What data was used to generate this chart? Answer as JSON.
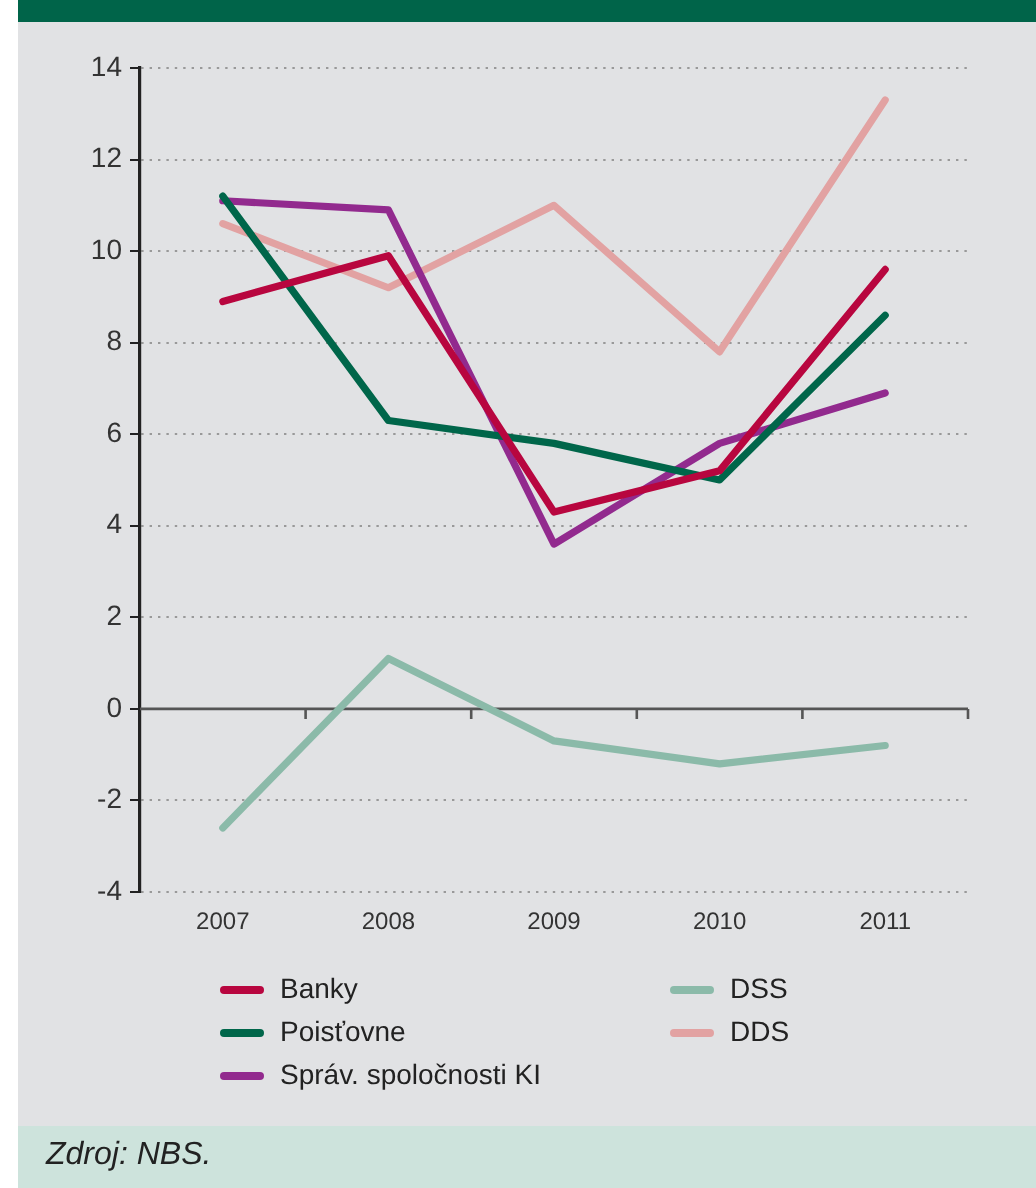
{
  "chart_data": {
    "type": "line",
    "categories": [
      "2007",
      "2008",
      "2009",
      "2010",
      "2011"
    ],
    "series": [
      {
        "name": "Banky",
        "color": "#b8063f",
        "values": [
          8.9,
          9.9,
          4.3,
          5.2,
          9.6
        ]
      },
      {
        "name": "Poisťovne",
        "color": "#00664a",
        "values": [
          11.2,
          6.3,
          5.8,
          5.0,
          8.6
        ]
      },
      {
        "name": "Správ. spoločnosti KI",
        "color": "#922a8e",
        "values": [
          11.1,
          10.9,
          3.6,
          5.8,
          6.9
        ]
      },
      {
        "name": "DSS",
        "color": "#8bbaa9",
        "values": [
          -2.6,
          1.1,
          -0.7,
          -1.2,
          -0.8
        ]
      },
      {
        "name": "DDS",
        "color": "#e2a2a2",
        "values": [
          10.6,
          9.2,
          11.0,
          7.8,
          13.3
        ]
      }
    ],
    "ylim": [
      -4,
      14
    ],
    "yticks": [
      -4,
      -2,
      0,
      2,
      4,
      6,
      8,
      10,
      12,
      14
    ],
    "grid": "y",
    "legend": "bottom",
    "marker": "none",
    "annotations": [
      "Zdroj: NBS."
    ]
  }
}
